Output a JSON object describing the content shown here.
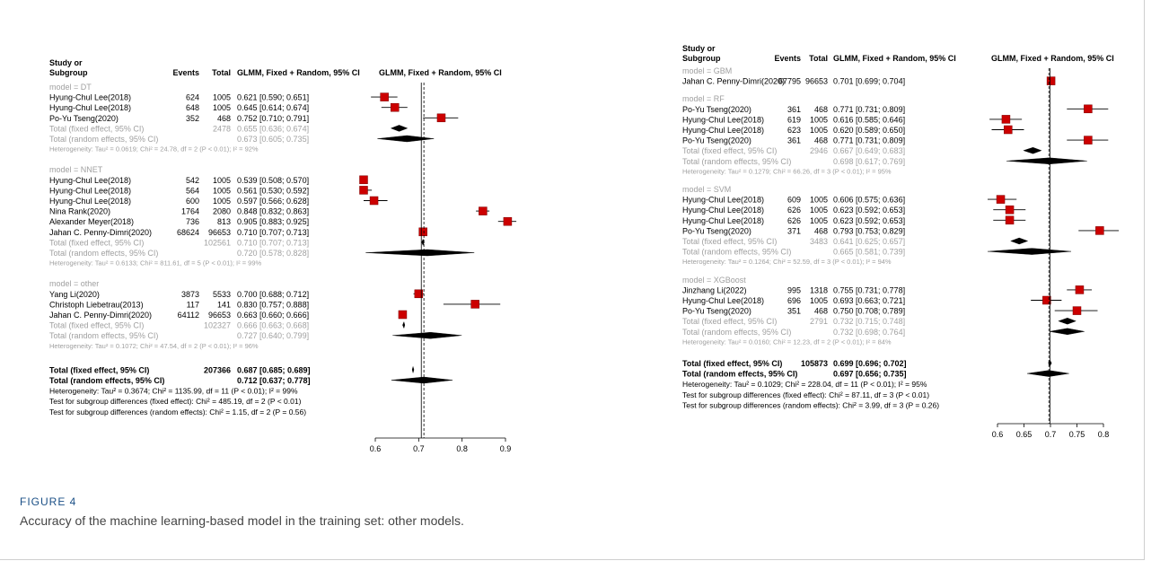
{
  "figure": {
    "label": "FIGURE 4",
    "caption": "Accuracy of the machine learning-based model in the training set: other models."
  },
  "colors": {
    "study_box": "#cc0000",
    "grey_text": "#a0a0a0",
    "black": "#000000"
  },
  "chart_data": [
    {
      "type": "forest",
      "headers": {
        "study1": "Study or",
        "study2": "Subgroup",
        "events": "Events",
        "total": "Total",
        "ci": "GLMM, Fixed + Random, 95% CI",
        "plot": "GLMM, Fixed + Random, 95% CI"
      },
      "xlim": [
        0.6,
        0.9
      ],
      "ticks": [
        "0.6",
        "0.7",
        "0.8",
        "0.9"
      ],
      "fixed_line": 0.706,
      "random_line": 0.712,
      "groups": [
        {
          "label": "model = DT",
          "studies": [
            {
              "name": "Hyung-Chul Lee(2018)",
              "events": "624",
              "total": "1005",
              "ci": "0.621 [0.590; 0.651]",
              "est": 0.621,
              "lo": 0.59,
              "hi": 0.651
            },
            {
              "name": "Hyung-Chul Lee(2018)",
              "events": "648",
              "total": "1005",
              "ci": "0.645 [0.614; 0.674]",
              "est": 0.645,
              "lo": 0.614,
              "hi": 0.674
            },
            {
              "name": "Po-Yu Tseng(2020)",
              "events": "352",
              "total": "468",
              "ci": "0.752 [0.710; 0.791]",
              "est": 0.752,
              "lo": 0.71,
              "hi": 0.791
            }
          ],
          "fixed": {
            "name": "Total (fixed effect, 95% CI)",
            "total": "2478",
            "ci": "0.655 [0.636; 0.674]",
            "est": 0.655,
            "lo": 0.636,
            "hi": 0.674
          },
          "random": {
            "name": "Total (random effects, 95% CI)",
            "ci": "0.673 [0.605; 0.735]",
            "est": 0.673,
            "lo": 0.605,
            "hi": 0.735
          },
          "het": "Heterogeneity: Tau² = 0.0619; Chi² = 24.78, df = 2 (P < 0.01); I² = 92%"
        },
        {
          "label": "model = NNET",
          "studies": [
            {
              "name": "Hyung-Chul Lee(2018)",
              "events": "542",
              "total": "1005",
              "ci": "0.539 [0.508; 0.570]",
              "est": 0.539,
              "lo": 0.508,
              "hi": 0.57
            },
            {
              "name": "Hyung-Chul Lee(2018)",
              "events": "564",
              "total": "1005",
              "ci": "0.561 [0.530; 0.592]",
              "est": 0.561,
              "lo": 0.53,
              "hi": 0.592
            },
            {
              "name": "Hyung-Chul Lee(2018)",
              "events": "600",
              "total": "1005",
              "ci": "0.597 [0.566; 0.628]",
              "est": 0.597,
              "lo": 0.566,
              "hi": 0.628
            },
            {
              "name": "Nina Rank(2020)",
              "events": "1764",
              "total": "2080",
              "ci": "0.848 [0.832; 0.863]",
              "est": 0.848,
              "lo": 0.832,
              "hi": 0.863
            },
            {
              "name": "Alexander Meyer(2018)",
              "events": "736",
              "total": "813",
              "ci": "0.905 [0.883; 0.925]",
              "est": 0.905,
              "lo": 0.883,
              "hi": 0.925
            },
            {
              "name": "Jahan C. Penny-Dimri(2020)",
              "events": "68624",
              "total": "96653",
              "ci": "0.710 [0.707; 0.713]",
              "est": 0.71,
              "lo": 0.707,
              "hi": 0.713
            }
          ],
          "fixed": {
            "name": "Total (fixed effect, 95% CI)",
            "total": "102561",
            "ci": "0.710 [0.707; 0.713]",
            "est": 0.71,
            "lo": 0.707,
            "hi": 0.713
          },
          "random": {
            "name": "Total (random effects, 95% CI)",
            "ci": "0.720 [0.578; 0.828]",
            "est": 0.72,
            "lo": 0.578,
            "hi": 0.828
          },
          "het": "Heterogeneity: Tau² = 0.6133; Chi² = 811.61, df = 5 (P < 0.01); I² = 99%"
        },
        {
          "label": "model = other",
          "studies": [
            {
              "name": "Yang Li(2020)",
              "events": "3873",
              "total": "5533",
              "ci": "0.700 [0.688; 0.712]",
              "est": 0.7,
              "lo": 0.688,
              "hi": 0.712
            },
            {
              "name": "Christoph Liebetrau(2013)",
              "events": "117",
              "total": "141",
              "ci": "0.830 [0.757; 0.888]",
              "est": 0.83,
              "lo": 0.757,
              "hi": 0.888
            },
            {
              "name": "Jahan C. Penny-Dimri(2020)",
              "events": "64112",
              "total": "96653",
              "ci": "0.663 [0.660; 0.666]",
              "est": 0.663,
              "lo": 0.66,
              "hi": 0.666
            }
          ],
          "fixed": {
            "name": "Total (fixed effect, 95% CI)",
            "total": "102327",
            "ci": "0.666 [0.663; 0.668]",
            "est": 0.666,
            "lo": 0.663,
            "hi": 0.668
          },
          "random": {
            "name": "Total (random effects, 95% CI)",
            "ci": "0.727 [0.640; 0.799]",
            "est": 0.727,
            "lo": 0.64,
            "hi": 0.799
          },
          "het": "Heterogeneity: Tau² = 0.1072; Chi² = 47.54, df = 2 (P < 0.01); I² = 96%"
        }
      ],
      "overall": {
        "fixed": {
          "name": "Total (fixed effect, 95% CI)",
          "total": "207366",
          "ci": "0.687 [0.685; 0.689]",
          "est": 0.687,
          "lo": 0.685,
          "hi": 0.689
        },
        "random": {
          "name": "Total (random effects, 95% CI)",
          "ci": "0.712 [0.637; 0.778]",
          "est": 0.712,
          "lo": 0.637,
          "hi": 0.778
        },
        "notes": [
          "Heterogeneity: Tau² = 0.3674; Chi² = 1135.99, df = 11 (P < 0.01); I² = 99%",
          "Test for subgroup differences (fixed effect): Chi² = 485.19, df = 2 (P < 0.01)",
          "Test for subgroup differences (random effects): Chi² = 1.15, df = 2 (P = 0.56)"
        ]
      }
    },
    {
      "type": "forest",
      "headers": {
        "study1": "Study or",
        "study2": "Subgroup",
        "events": "Events",
        "total": "Total",
        "ci": "GLMM, Fixed + Random, 95% CI",
        "plot": "GLMM, Fixed + Random, 95% CI"
      },
      "xlim": [
        0.6,
        0.8
      ],
      "ticks": [
        "0.6",
        "0.65",
        "0.7",
        "0.75",
        "0.8"
      ],
      "fixed_line": 0.699,
      "random_line": 0.697,
      "groups": [
        {
          "label": "model = GBM",
          "studies": [
            {
              "name": "Jahan C. Penny-Dimri(2020)",
              "events": "67795",
              "total": "96653",
              "ci": "0.701 [0.699; 0.704]",
              "est": 0.701,
              "lo": 0.699,
              "hi": 0.704
            }
          ]
        },
        {
          "label": "model = RF",
          "studies": [
            {
              "name": "Po-Yu Tseng(2020)",
              "events": "361",
              "total": "468",
              "ci": "0.771 [0.731; 0.809]",
              "est": 0.771,
              "lo": 0.731,
              "hi": 0.809
            },
            {
              "name": "Hyung-Chul Lee(2018)",
              "events": "619",
              "total": "1005",
              "ci": "0.616 [0.585; 0.646]",
              "est": 0.616,
              "lo": 0.585,
              "hi": 0.646
            },
            {
              "name": "Hyung-Chul Lee(2018)",
              "events": "623",
              "total": "1005",
              "ci": "0.620 [0.589; 0.650]",
              "est": 0.62,
              "lo": 0.589,
              "hi": 0.65
            },
            {
              "name": "Po-Yu Tseng(2020)",
              "events": "361",
              "total": "468",
              "ci": "0.771 [0.731; 0.809]",
              "est": 0.771,
              "lo": 0.731,
              "hi": 0.809
            }
          ],
          "fixed": {
            "name": "Total (fixed effect, 95% CI)",
            "total": "2946",
            "ci": "0.667 [0.649; 0.683]",
            "est": 0.667,
            "lo": 0.649,
            "hi": 0.683
          },
          "random": {
            "name": "Total (random effects, 95% CI)",
            "ci": "0.698 [0.617; 0.769]",
            "est": 0.698,
            "lo": 0.617,
            "hi": 0.769
          },
          "het": "Heterogeneity: Tau² = 0.1279; Chi² = 66.26, df = 3 (P < 0.01); I² = 95%"
        },
        {
          "label": "model = SVM",
          "studies": [
            {
              "name": "Hyung-Chul Lee(2018)",
              "events": "609",
              "total": "1005",
              "ci": "0.606 [0.575; 0.636]",
              "est": 0.606,
              "lo": 0.575,
              "hi": 0.636
            },
            {
              "name": "Hyung-Chul Lee(2018)",
              "events": "626",
              "total": "1005",
              "ci": "0.623 [0.592; 0.653]",
              "est": 0.623,
              "lo": 0.592,
              "hi": 0.653
            },
            {
              "name": "Hyung-Chul Lee(2018)",
              "events": "626",
              "total": "1005",
              "ci": "0.623 [0.592; 0.653]",
              "est": 0.623,
              "lo": 0.592,
              "hi": 0.653
            },
            {
              "name": "Po-Yu Tseng(2020)",
              "events": "371",
              "total": "468",
              "ci": "0.793 [0.753; 0.829]",
              "est": 0.793,
              "lo": 0.753,
              "hi": 0.829
            }
          ],
          "fixed": {
            "name": "Total (fixed effect, 95% CI)",
            "total": "3483",
            "ci": "0.641 [0.625; 0.657]",
            "est": 0.641,
            "lo": 0.625,
            "hi": 0.657
          },
          "random": {
            "name": "Total (random effects, 95% CI)",
            "ci": "0.665 [0.581; 0.739]",
            "est": 0.665,
            "lo": 0.581,
            "hi": 0.739
          },
          "het": "Heterogeneity: Tau² = 0.1264; Chi² = 52.59, df = 3 (P < 0.01); I² = 94%"
        },
        {
          "label": "model = XGBoost",
          "studies": [
            {
              "name": "Jinzhang Li(2022)",
              "events": "995",
              "total": "1318",
              "ci": "0.755 [0.731; 0.778]",
              "est": 0.755,
              "lo": 0.731,
              "hi": 0.778
            },
            {
              "name": "Hyung-Chul Lee(2018)",
              "events": "696",
              "total": "1005",
              "ci": "0.693 [0.663; 0.721]",
              "est": 0.693,
              "lo": 0.663,
              "hi": 0.721
            },
            {
              "name": "Po-Yu Tseng(2020)",
              "events": "351",
              "total": "468",
              "ci": "0.750 [0.708; 0.789]",
              "est": 0.75,
              "lo": 0.708,
              "hi": 0.789
            }
          ],
          "fixed": {
            "name": "Total (fixed effect, 95% CI)",
            "total": "2791",
            "ci": "0.732 [0.715; 0.748]",
            "est": 0.732,
            "lo": 0.715,
            "hi": 0.748
          },
          "random": {
            "name": "Total (random effects, 95% CI)",
            "ci": "0.732 [0.698; 0.764]",
            "est": 0.732,
            "lo": 0.698,
            "hi": 0.764
          },
          "het": "Heterogeneity: Tau² = 0.0160; Chi² = 12.23, df = 2 (P < 0.01); I² = 84%"
        }
      ],
      "overall": {
        "fixed": {
          "name": "Total (fixed effect, 95% CI)",
          "total": "105873",
          "ci": "0.699 [0.696; 0.702]",
          "est": 0.699,
          "lo": 0.696,
          "hi": 0.702
        },
        "random": {
          "name": "Total (random effects, 95% CI)",
          "ci": "0.697 [0.656; 0.735]",
          "est": 0.697,
          "lo": 0.656,
          "hi": 0.735
        },
        "notes": [
          "Heterogeneity: Tau² = 0.1029; Chi² = 228.04, df = 11 (P < 0.01); I² = 95%",
          "Test for subgroup differences (fixed effect): Chi² = 87.11, df = 3 (P < 0.01)",
          "Test for subgroup differences (random effects): Chi² = 3.99, df = 3 (P = 0.26)"
        ]
      }
    }
  ]
}
